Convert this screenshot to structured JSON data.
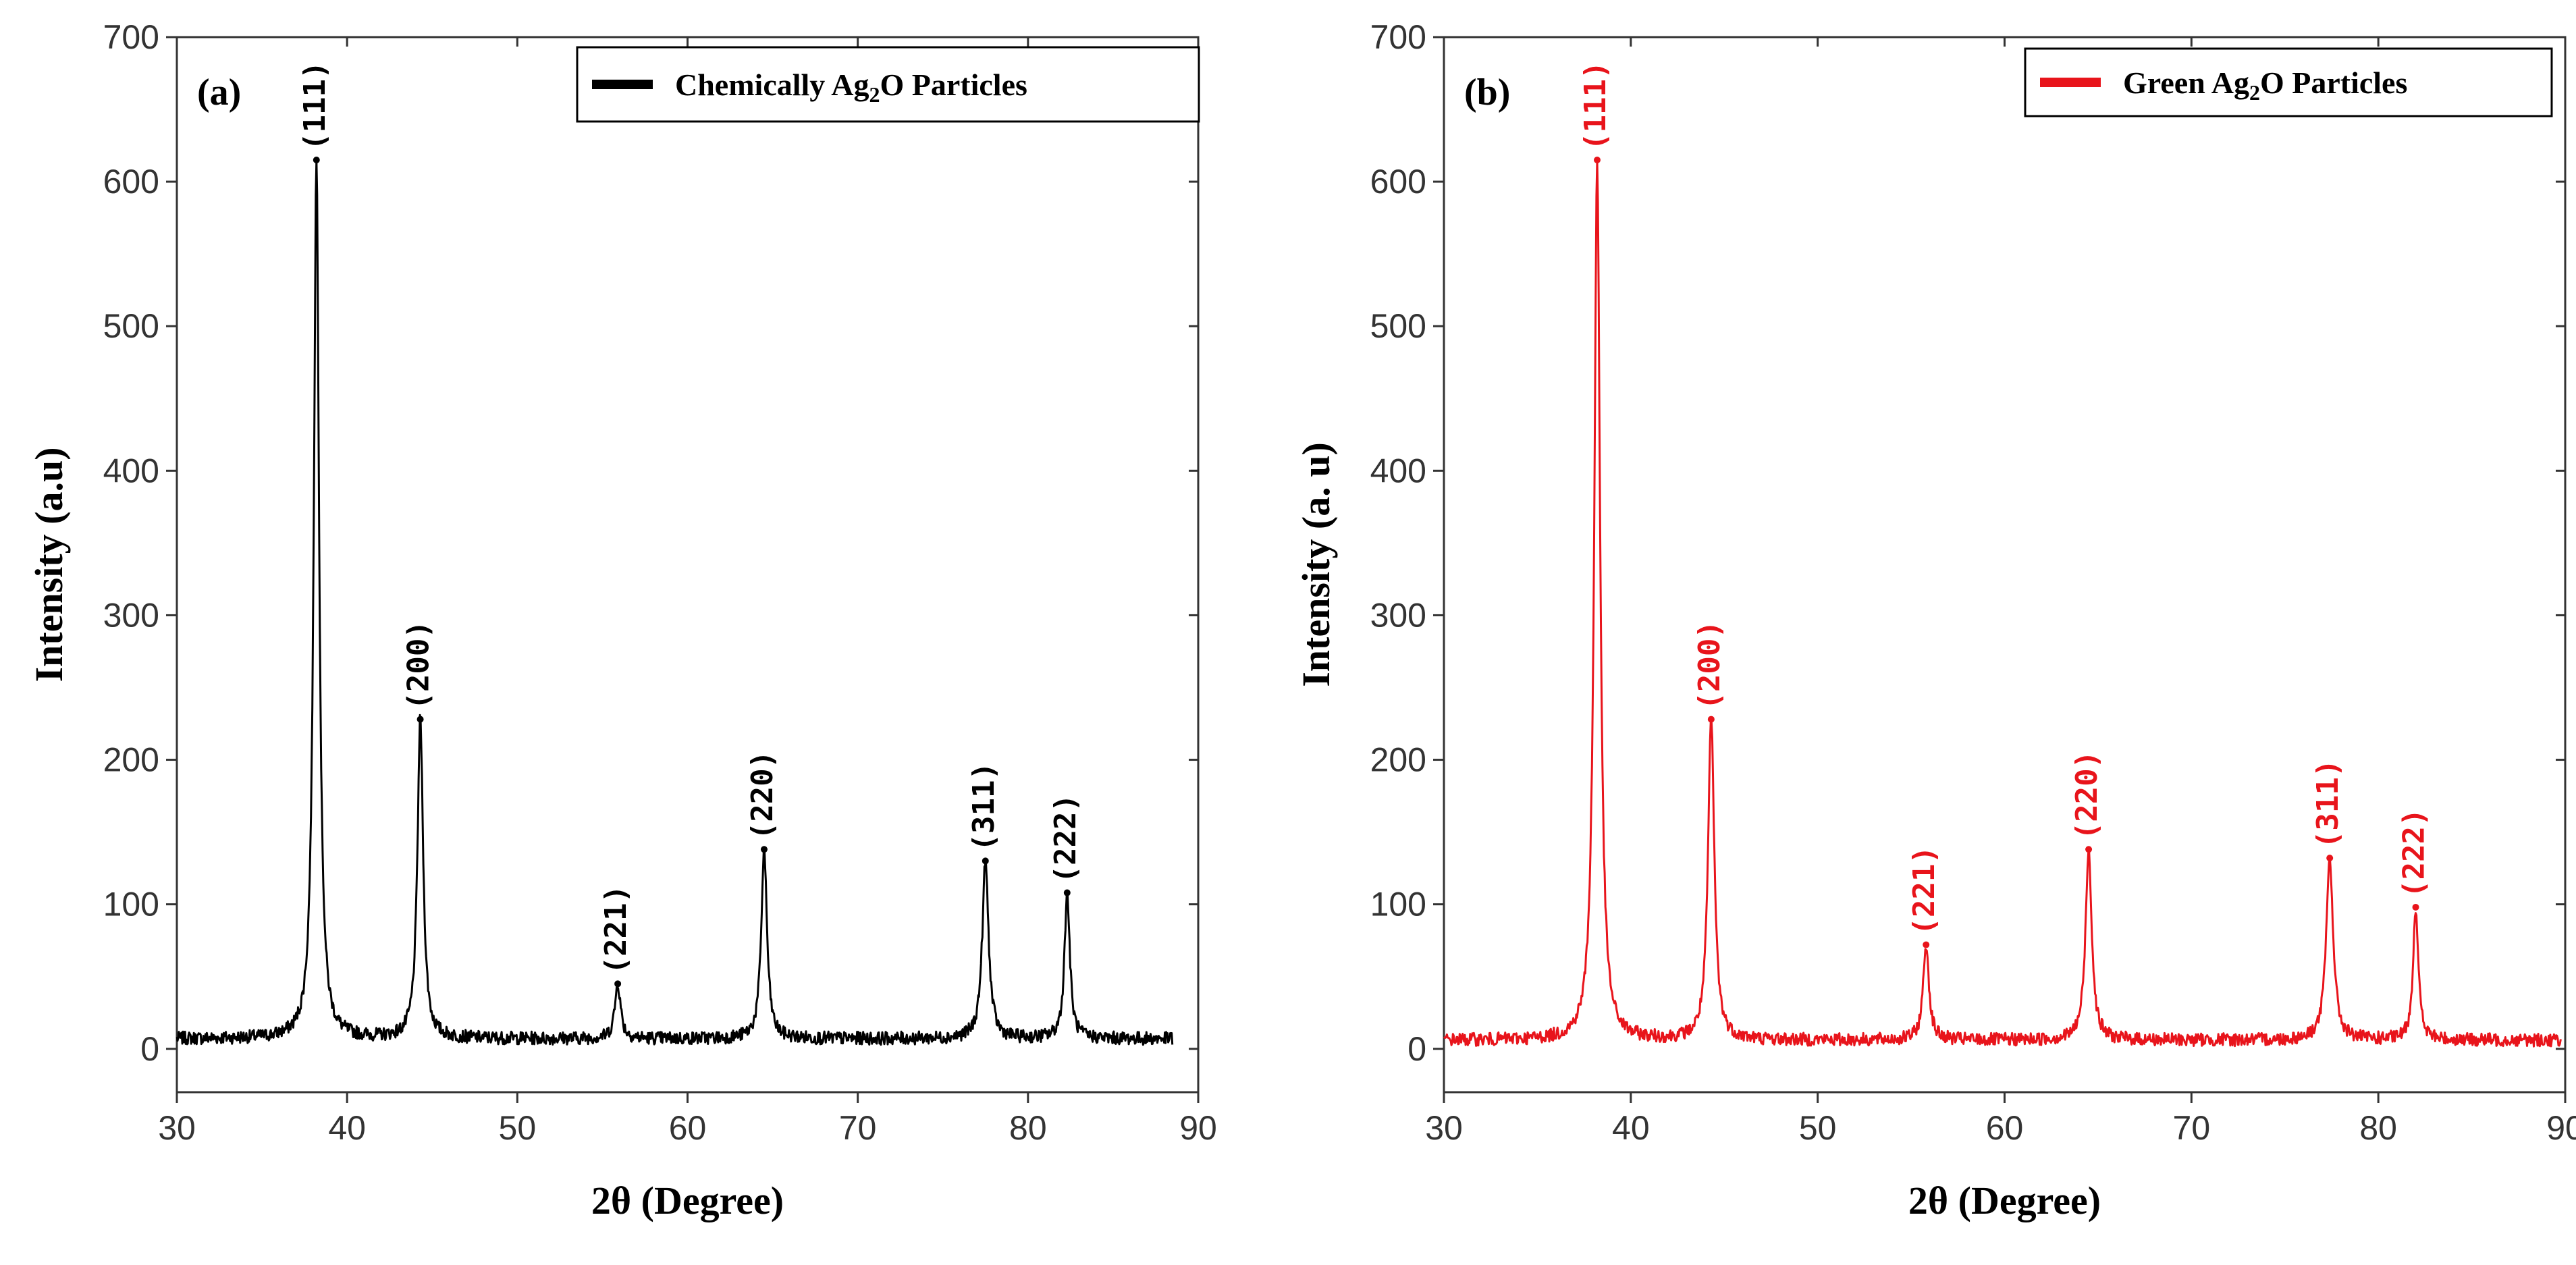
{
  "chart_data": [
    {
      "type": "line",
      "panel_label": "(a)",
      "xlabel": "2θ (Degree)",
      "ylabel": "Intensity (a.u)",
      "xlim": [
        30,
        90
      ],
      "ylim": [
        -30,
        700
      ],
      "xticks": [
        30,
        40,
        50,
        60,
        70,
        80,
        90
      ],
      "yticks": [
        0,
        100,
        200,
        300,
        400,
        500,
        600,
        700
      ],
      "color": "#000000",
      "legend": {
        "prefix": "Chemically Ag",
        "sub": "2",
        "suffix": "O Particles",
        "position": "top-right"
      },
      "baseline": 7,
      "x_end": 88.5,
      "peaks": [
        {
          "label": "(111)",
          "x": 38.2,
          "y": 615,
          "width": 0.28
        },
        {
          "label": "(200)",
          "x": 44.3,
          "y": 228,
          "width": 0.3
        },
        {
          "label": "(221)",
          "x": 55.9,
          "y": 45,
          "width": 0.3
        },
        {
          "label": "(220)",
          "x": 64.5,
          "y": 138,
          "width": 0.3
        },
        {
          "label": "(311)",
          "x": 77.5,
          "y": 130,
          "width": 0.33
        },
        {
          "label": "(222)",
          "x": 82.3,
          "y": 108,
          "width": 0.28
        }
      ]
    },
    {
      "type": "line",
      "panel_label": "(b)",
      "xlabel": "2θ (Degree)",
      "ylabel": "Intensity (a. u)",
      "xlim": [
        30,
        90
      ],
      "ylim": [
        -30,
        700
      ],
      "xticks": [
        30,
        40,
        50,
        60,
        70,
        80,
        90
      ],
      "yticks": [
        0,
        100,
        200,
        300,
        400,
        500,
        600,
        700
      ],
      "color": "#e8141b",
      "legend": {
        "prefix": "Green Ag",
        "sub": "2",
        "suffix": "O Particles",
        "position": "top-right"
      },
      "baseline": 6,
      "x_end": 89.8,
      "peaks": [
        {
          "label": "(111)",
          "x": 38.2,
          "y": 615,
          "width": 0.28
        },
        {
          "label": "(200)",
          "x": 44.3,
          "y": 228,
          "width": 0.3
        },
        {
          "label": "(221)",
          "x": 55.8,
          "y": 72,
          "width": 0.28
        },
        {
          "label": "(220)",
          "x": 64.5,
          "y": 138,
          "width": 0.3
        },
        {
          "label": "(311)",
          "x": 77.4,
          "y": 132,
          "width": 0.33
        },
        {
          "label": "(222)",
          "x": 82.0,
          "y": 98,
          "width": 0.25
        }
      ]
    }
  ]
}
